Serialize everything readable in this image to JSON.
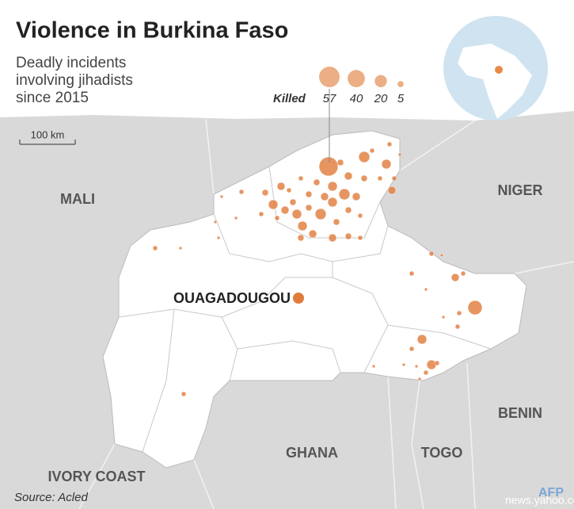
{
  "title": "Violence in Burkina Faso",
  "subtitle": [
    "Deadly incidents",
    "involving jihadists",
    "since 2015"
  ],
  "legend": {
    "label": "Killed",
    "sizes": [
      57,
      40,
      20,
      5
    ]
  },
  "scale": "100 km",
  "countries": [
    "MALI",
    "NIGER",
    "BENIN",
    "TOGO",
    "GHANA",
    "IVORY COAST"
  ],
  "city": "OUAGADOUGOU",
  "source": "Source: Acled",
  "credit": "AFP",
  "watermark": "news.yahoo.com"
}
